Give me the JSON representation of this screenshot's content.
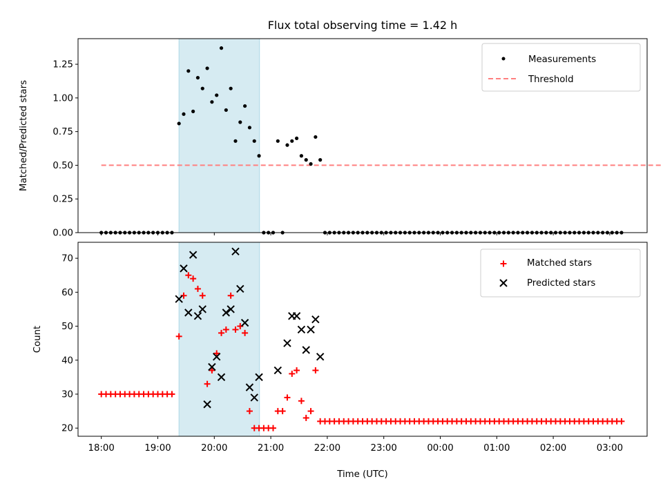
{
  "chart_data": [
    {
      "type": "scatter",
      "panel": "top",
      "title": "Flux total observing time = 1.42 h",
      "xlabel": "",
      "ylabel": "Matched/Predicted stars",
      "ylim": [
        0,
        1.44
      ],
      "yticks": [
        0.0,
        0.25,
        0.5,
        0.75,
        1.0,
        1.25
      ],
      "ytick_labels": [
        "0.00",
        "0.25",
        "0.50",
        "0.75",
        "1.00",
        "1.25"
      ],
      "xlim_minutes_from_1800": [
        -25,
        594
      ],
      "legend": {
        "placement": "top-right",
        "entries": [
          {
            "label": "Measurements",
            "marker": "dot",
            "color": "#000000"
          },
          {
            "label": "Threshold",
            "marker": "dashed-line",
            "color": "#ff7f7f"
          }
        ]
      },
      "highlight_span_minutes": [
        82.5,
        168
      ],
      "highlight_color": "#add8e6",
      "threshold": {
        "value": 0.5,
        "x_range_minutes": [
          0,
          795
        ]
      },
      "series": [
        {
          "name": "Measurements",
          "color": "#000000",
          "segments": [
            {
              "start": 0,
              "step": 5,
              "values": [
                0,
                0,
                0,
                0,
                0,
                0,
                0,
                0,
                0,
                0,
                0,
                0,
                0,
                0,
                0,
                0
              ]
            },
            {
              "start": 82.5,
              "step": 5,
              "values": [
                0.81,
                0.88,
                1.2,
                0.9,
                1.15,
                1.07,
                1.22,
                0.97,
                1.02,
                1.37,
                0.91,
                1.07,
                0.68,
                0.82,
                0.94,
                0.78,
                0.68,
                0.57,
                0,
                0,
                0,
                0.68,
                0,
                0.65,
                0.68,
                0.7,
                0.57,
                0.54,
                0.51,
                0.71,
                0.54
              ]
            },
            {
              "start": 237.5,
              "step": 5,
              "count": 64,
              "constant": 0
            }
          ]
        }
      ]
    },
    {
      "type": "scatter",
      "panel": "bottom",
      "title": "",
      "xlabel": "Time (UTC)",
      "ylabel": "Count",
      "ylim": [
        17.6,
        74.7
      ],
      "yticks": [
        20,
        30,
        40,
        50,
        60,
        70
      ],
      "ytick_labels": [
        "20",
        "30",
        "40",
        "50",
        "60",
        "70"
      ],
      "xticks_minutes": [
        0,
        60,
        120,
        180,
        240,
        300,
        360,
        420,
        480,
        540
      ],
      "xtick_labels": [
        "18:00",
        "19:00",
        "20:00",
        "21:00",
        "22:00",
        "23:00",
        "00:00",
        "01:00",
        "02:00",
        "03:00"
      ],
      "legend": {
        "placement": "top-right",
        "entries": [
          {
            "label": "Matched stars",
            "marker": "plus",
            "color": "#ff0000"
          },
          {
            "label": "Predicted stars",
            "marker": "x",
            "color": "#000000"
          }
        ]
      },
      "highlight_span_minutes": [
        82.5,
        168
      ],
      "series": [
        {
          "name": "Matched stars",
          "marker": "plus",
          "color": "#ff0000",
          "segments": [
            {
              "start": 0,
              "step": 5,
              "count": 16,
              "constant": 30
            },
            {
              "start": 82.5,
              "step": 5,
              "values": [
                47,
                59,
                65,
                64,
                61,
                59,
                33,
                37,
                42,
                48,
                49,
                59,
                49,
                50,
                48,
                25,
                20,
                20,
                20,
                20,
                20,
                25,
                25,
                29,
                36,
                37,
                28,
                23,
                25,
                37,
                22
              ]
            },
            {
              "start": 237.5,
              "step": 5,
              "count": 64,
              "constant": 22
            }
          ]
        },
        {
          "name": "Predicted stars",
          "marker": "x",
          "color": "#000000",
          "segments": [
            {
              "start": 82.5,
              "step": 5,
              "values": [
                58,
                67,
                54,
                71,
                53,
                55,
                27,
                38,
                41,
                35,
                54,
                55,
                72,
                61,
                51,
                32,
                29,
                35,
                null,
                null,
                null,
                37,
                null,
                45,
                53,
                53,
                49,
                43,
                49,
                52,
                41
              ]
            }
          ]
        }
      ]
    }
  ]
}
